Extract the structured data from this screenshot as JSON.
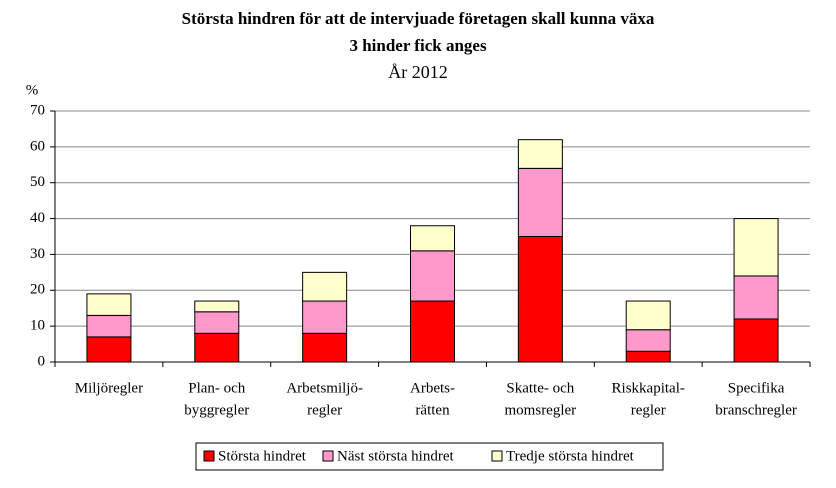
{
  "chart_data": {
    "type": "stacked_bar",
    "title": [
      "Största hindren för att de intervjuade företagen skall kunna växa",
      "3 hinder fick anges"
    ],
    "subtitle": "År 2012",
    "y_label": "%",
    "categories": [
      [
        "Miljöregler"
      ],
      [
        "Plan- och",
        "byggregler"
      ],
      [
        "Arbetsmiljö-",
        "regler"
      ],
      [
        "Arbets-",
        "rätten"
      ],
      [
        "Skatte- och",
        "momsregler"
      ],
      [
        "Riskkapital-",
        "regler"
      ],
      [
        "Specifika",
        "branschregler"
      ]
    ],
    "series": [
      {
        "name": "Största hindret",
        "color": "#ff0000",
        "values": [
          7,
          8,
          8,
          17,
          35,
          3,
          12
        ]
      },
      {
        "name": "Näst största hindret",
        "color": "#ff99cc",
        "values": [
          6,
          6,
          9,
          14,
          19,
          6,
          12
        ]
      },
      {
        "name": "Tredje största hindret",
        "color": "#ffffcc",
        "values": [
          6,
          3,
          8,
          7,
          8,
          8,
          16
        ]
      }
    ],
    "ylim": [
      0,
      70
    ],
    "yticks": [
      0,
      10,
      20,
      30,
      40,
      50,
      60,
      70
    ],
    "grid": true,
    "legend": "bottom"
  }
}
